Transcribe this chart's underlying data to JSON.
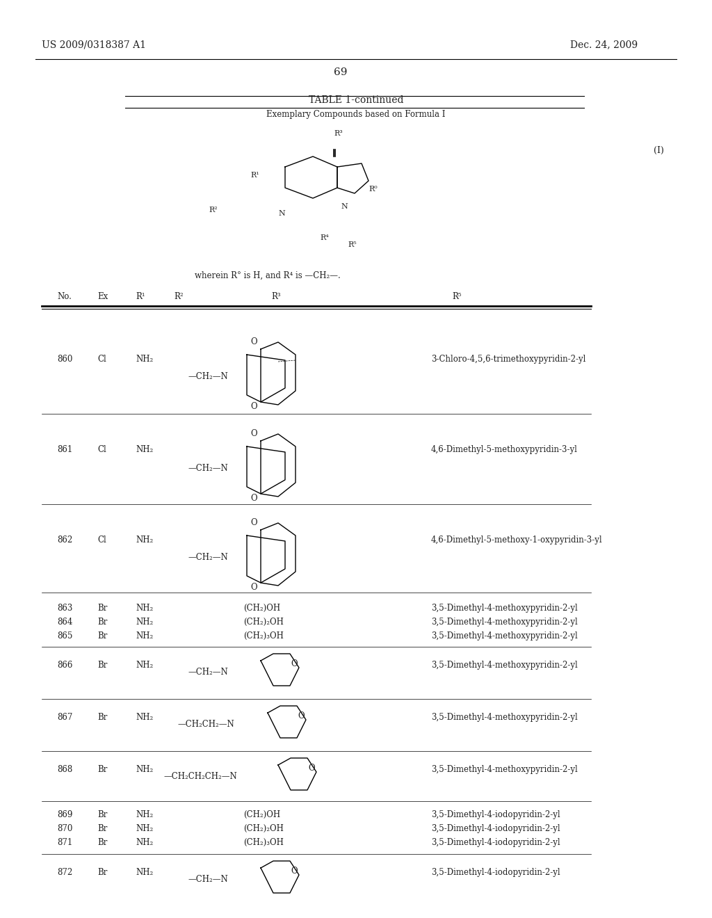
{
  "patent_number": "US 2009/0318387 A1",
  "date": "Dec. 24, 2009",
  "page_number": "69",
  "table_title": "TABLE 1-continued",
  "table_subtitle": "Exemplary Compounds based on Formula I",
  "formula_label": "(I)",
  "wherein_text": "wherein R° is H, and R⁴ is —CH₂—.",
  "col_headers": [
    "No.",
    "Ex",
    "R¹",
    "R²",
    "R³",
    "R⁵"
  ],
  "rows": [
    {
      "no": "860",
      "ex": "Cl",
      "r1": "NH₂",
      "r2": "",
      "r3": "phthalimide_ch2",
      "r5": "3-Chloro-4,5,6-trimethoxypyridin-2-yl"
    },
    {
      "no": "861",
      "ex": "Cl",
      "r1": "NH₂",
      "r2": "",
      "r3": "phthalimide_ch2",
      "r5": "4,6-Dimethyl-5-methoxypyridin-3-yl"
    },
    {
      "no": "862",
      "ex": "Cl",
      "r1": "NH₂",
      "r2": "",
      "r3": "phthalimide_ch2",
      "r5": "4,6-Dimethyl-5-methoxy-1-oxypyridin-3-yl"
    },
    {
      "no": "863",
      "ex": "Br",
      "r1": "NH₂",
      "r2": "",
      "r3": "(CH₂)OH",
      "r5": "3,5-Dimethyl-4-methoxypyridin-2-yl"
    },
    {
      "no": "864",
      "ex": "Br",
      "r1": "NH₂",
      "r2": "",
      "r3": "(CH₂)₂OH",
      "r5": "3,5-Dimethyl-4-methoxypyridin-2-yl"
    },
    {
      "no": "865",
      "ex": "Br",
      "r1": "NH₂",
      "r2": "",
      "r3": "(CH₂)₃OH",
      "r5": "3,5-Dimethyl-4-methoxypyridin-2-yl"
    },
    {
      "no": "866",
      "ex": "Br",
      "r1": "NH₂",
      "r2": "",
      "r3": "morpholine_ch2",
      "r5": "3,5-Dimethyl-4-methoxypyridin-2-yl"
    },
    {
      "no": "867",
      "ex": "Br",
      "r1": "NH₂",
      "r2": "",
      "r3": "morpholine_ch2ch2",
      "r5": "3,5-Dimethyl-4-methoxypyridin-2-yl"
    },
    {
      "no": "868",
      "ex": "Br",
      "r1": "NH₂",
      "r2": "",
      "r3": "morpholine_ch2ch2ch2",
      "r5": "3,5-Dimethyl-4-methoxypyridin-2-yl"
    },
    {
      "no": "869",
      "ex": "Br",
      "r1": "NH₂",
      "r2": "",
      "r3": "(CH₂)OH",
      "r5": "3,5-Dimethyl-4-iodopyridin-2-yl"
    },
    {
      "no": "870",
      "ex": "Br",
      "r1": "NH₂",
      "r2": "",
      "r3": "(CH₂)₂OH",
      "r5": "3,5-Dimethyl-4-iodopyridin-2-yl"
    },
    {
      "no": "871",
      "ex": "Br",
      "r1": "NH₂",
      "r2": "",
      "r3": "(CH₂)₃OH",
      "r5": "3,5-Dimethyl-4-iodopyridin-2-yl"
    },
    {
      "no": "872",
      "ex": "Br",
      "r1": "NH₂",
      "r2": "",
      "r3": "morpholine_ch2",
      "r5": "3,5-Dimethyl-4-iodopyridin-2-yl"
    }
  ],
  "background_color": "#ffffff",
  "text_color": "#000000",
  "font_size_header": 9,
  "font_size_body": 8.5,
  "font_size_title": 10
}
